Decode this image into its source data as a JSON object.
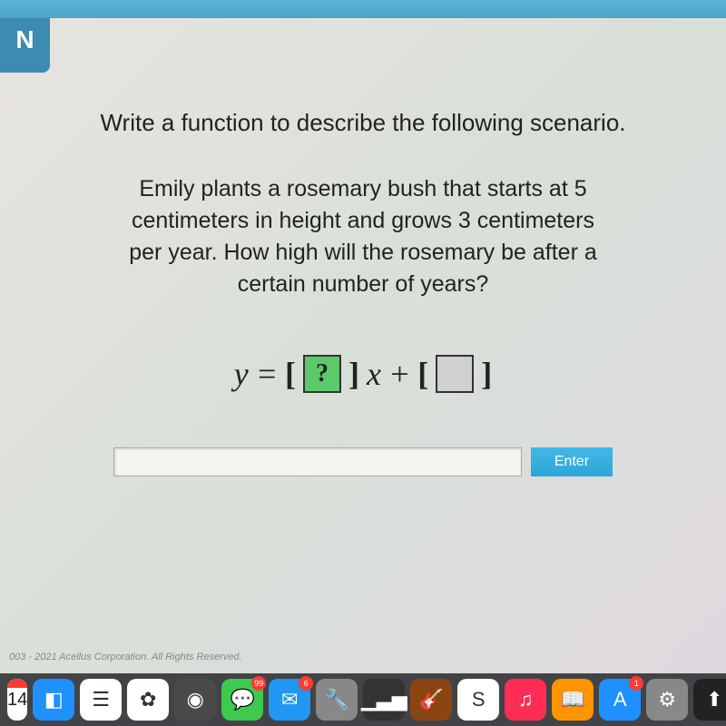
{
  "tab_label": "N",
  "content": {
    "instruction": "Write a function to describe the following scenario.",
    "problem_line1": "Emily plants a rosemary bush that starts at 5",
    "problem_line2": "centimeters in height and grows 3 centimeters",
    "problem_line3": "per year. How high will the rosemary be after a",
    "problem_line4": "certain number of years?",
    "equation": {
      "y_var": "y",
      "equals": "=",
      "blank1": "?",
      "x_var": "x",
      "plus": "+"
    },
    "enter_label": "Enter"
  },
  "copyright": "003 - 2021 Acellus Corporation. All Rights Reserved.",
  "dock": {
    "calendar_date": "14",
    "icons": [
      {
        "name": "finder",
        "bg": "#1e90ff",
        "symbol": "◧"
      },
      {
        "name": "reminders",
        "bg": "#ffffff",
        "symbol": "☰"
      },
      {
        "name": "photos",
        "bg": "#ffffff",
        "symbol": "✿"
      },
      {
        "name": "camera",
        "bg": "#4a4a4a",
        "symbol": "◉"
      },
      {
        "name": "messages",
        "bg": "#3ec94f",
        "symbol": "💬",
        "badge": "99"
      },
      {
        "name": "mail",
        "bg": "#2196f3",
        "symbol": "✉",
        "badge": "6"
      },
      {
        "name": "tools",
        "bg": "#888",
        "symbol": "🔧"
      },
      {
        "name": "stats",
        "bg": "#333",
        "symbol": "▁▃▅"
      },
      {
        "name": "music-alt",
        "bg": "#8b4513",
        "symbol": "🎸"
      },
      {
        "name": "news",
        "bg": "#ffffff",
        "symbol": "S"
      },
      {
        "name": "music",
        "bg": "#ff2d55",
        "symbol": "♫"
      },
      {
        "name": "books",
        "bg": "#ff9500",
        "symbol": "📖"
      },
      {
        "name": "appstore",
        "bg": "#1e90ff",
        "symbol": "A",
        "badge": "1"
      },
      {
        "name": "settings",
        "bg": "#888",
        "symbol": "⚙"
      },
      {
        "name": "activity",
        "bg": "#222",
        "symbol": "⬆"
      },
      {
        "name": "notes",
        "bg": "#ffeb3b",
        "symbol": "▤"
      },
      {
        "name": "spotify",
        "bg": "#1db954",
        "symbol": "≡"
      }
    ]
  },
  "colors": {
    "top_bar": "#5bb5d6",
    "tab_bg": "#3d8bb0",
    "blank_active": "#5cc96b",
    "enter_btn": "#2ea5d8"
  }
}
